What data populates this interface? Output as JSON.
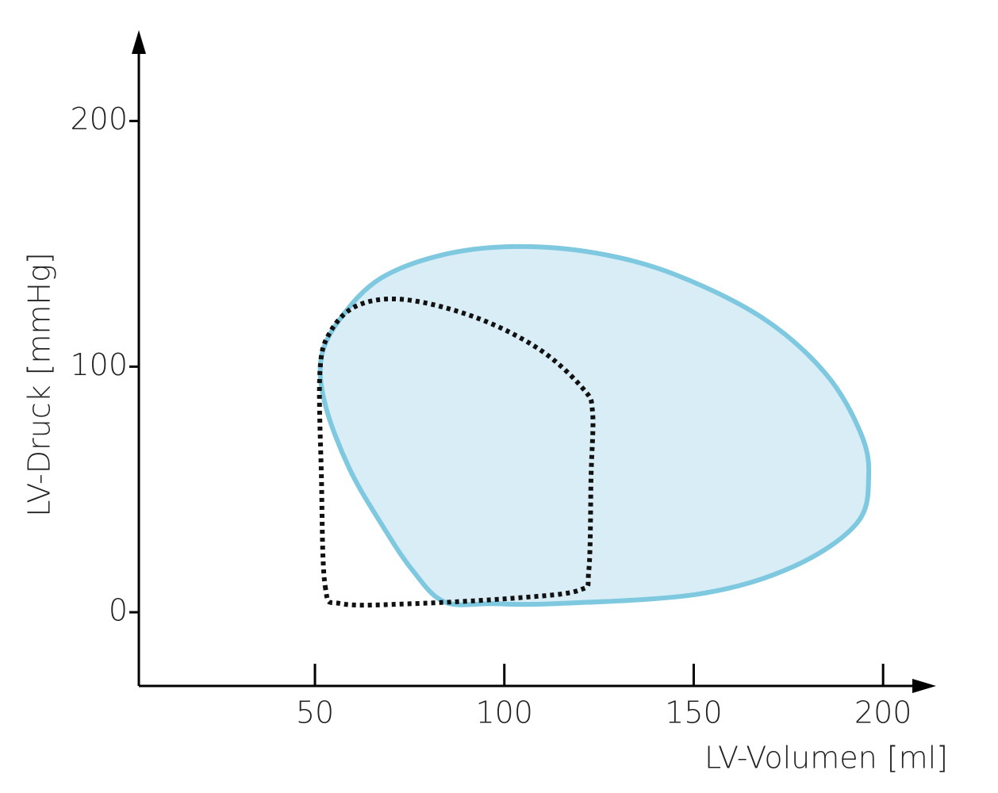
{
  "chart_data": {
    "type": "line",
    "x_label": "LV-Volumen [ml]",
    "y_label": "LV-Druck [mmHg]",
    "xlim": [
      3.5,
      214
    ],
    "ylim": [
      -30,
      237
    ],
    "xticks": [
      50,
      100,
      150,
      200
    ],
    "yticks": [
      0,
      100,
      200
    ],
    "closed": true,
    "smooth": true,
    "series": [
      {
        "color": "#7ec8e0",
        "fill": "#d8edf6",
        "dash": false,
        "x": [
          84.2,
          96.7,
          113.5,
          151.2,
          176.3,
          193.1,
          196.2,
          194,
          184.7,
          168,
          144.9,
          124,
          103,
          84.2,
          67.4,
          56.9,
          51.7,
          52.7,
          59,
          67.4,
          75.8
        ],
        "values": [
          4.2,
          3.5,
          3.5,
          7.4,
          18.6,
          36.3,
          55.6,
          73.3,
          97.4,
          120,
          137.6,
          146.3,
          148.9,
          145.7,
          136,
          120,
          103.9,
          84.6,
          58.8,
          36.3,
          17
        ]
      },
      {
        "color": "#111111",
        "fill": "none",
        "dash": true,
        "x": [
          52.7,
          56.9,
          75.8,
          103,
          119.8,
          122.3,
          122.9,
          123.3,
          120.8,
          109.3,
          92.5,
          73.7,
          61.1,
          53.8,
          51.3,
          51.7
        ],
        "values": [
          10.6,
          3.5,
          3.5,
          5.8,
          9,
          17,
          55.6,
          81.4,
          91,
          107,
          120,
          127.3,
          124.8,
          113.5,
          97.4,
          55.6
        ]
      }
    ]
  }
}
